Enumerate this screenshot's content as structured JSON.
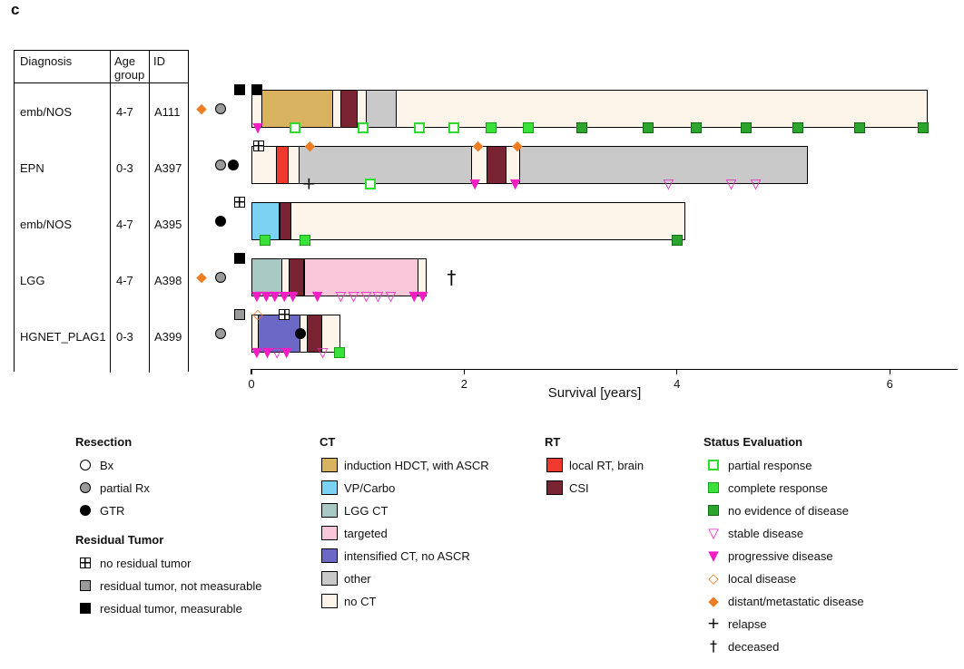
{
  "panel_label": "c",
  "table": {
    "headers": [
      "Diagnosis",
      "Age group",
      "ID"
    ]
  },
  "colors": {
    "segment": {
      "induction HDCT, with ASCR": "#d9b25f",
      "VP/Carbo": "#7bd2f2",
      "LGG CT": "#a7c8c3",
      "targeted": "#f9c7d9",
      "intensified CT, no ASCR": "#6c68c5",
      "other": "#c9c9c9",
      "no CT": "#fdf4ea",
      "local RT, brain": "#f0392e",
      "CSI": "#7a2433"
    },
    "status": {
      "partial_response_green": "#2ddd2d",
      "complete_response_green": "#3ae13a",
      "complete_response_border": "#17a017",
      "ned_green": "#2da42d",
      "ned_border": "#0f6b0f",
      "magenta": "#f21dc3",
      "orange": "#ee7d23",
      "gray": "#9a9a9a"
    }
  },
  "chart_data": {
    "type": "swimmer",
    "title": "",
    "xlabel": "Survival [years]",
    "xlim": [
      0,
      6.64
    ],
    "xticks": [
      0,
      2,
      4,
      6
    ],
    "grid": false,
    "legend_position": "bottom",
    "patients": [
      {
        "diagnosis": "emb/NOS",
        "age_group": "4-7",
        "id": "A111",
        "pre_markers": [
          {
            "type": "distant/metastatic disease",
            "col": "diamond"
          },
          {
            "type": "partial Rx",
            "col": "circle"
          },
          {
            "type": "residual tumor, measurable",
            "col": "square"
          }
        ],
        "bar_end": 6.36,
        "segments": [
          {
            "type": "no CT",
            "start": 0,
            "end": 0.1
          },
          {
            "type": "induction HDCT, with ASCR",
            "start": 0.1,
            "end": 0.77
          },
          {
            "type": "no CT",
            "start": 0.77,
            "end": 0.84
          },
          {
            "type": "CSI",
            "start": 0.84,
            "end": 1.0
          },
          {
            "type": "no CT",
            "start": 1.0,
            "end": 1.08
          },
          {
            "type": "other",
            "start": 1.08,
            "end": 1.37
          },
          {
            "type": "no CT",
            "start": 1.37,
            "end": 6.36
          }
        ],
        "events": [
          {
            "type": "residual tumor, measurable",
            "t": 0.05,
            "pos": "top"
          },
          {
            "type": "progressive disease",
            "t": 0.06,
            "pos": "bottom"
          },
          {
            "type": "partial response",
            "t": 0.41,
            "pos": "bottom"
          },
          {
            "type": "partial response",
            "t": 1.05,
            "pos": "bottom"
          },
          {
            "type": "partial response",
            "t": 1.58,
            "pos": "bottom"
          },
          {
            "type": "partial response",
            "t": 1.9,
            "pos": "bottom"
          },
          {
            "type": "complete response",
            "t": 2.25,
            "pos": "bottom"
          },
          {
            "type": "complete response",
            "t": 2.6,
            "pos": "bottom"
          },
          {
            "type": "no evidence of disease",
            "t": 3.11,
            "pos": "bottom"
          },
          {
            "type": "no evidence of disease",
            "t": 3.73,
            "pos": "bottom"
          },
          {
            "type": "no evidence of disease",
            "t": 4.18,
            "pos": "bottom"
          },
          {
            "type": "no evidence of disease",
            "t": 4.65,
            "pos": "bottom"
          },
          {
            "type": "no evidence of disease",
            "t": 5.14,
            "pos": "bottom"
          },
          {
            "type": "no evidence of disease",
            "t": 5.72,
            "pos": "bottom"
          },
          {
            "type": "no evidence of disease",
            "t": 6.31,
            "pos": "bottom"
          }
        ]
      },
      {
        "diagnosis": "EPN",
        "age_group": "0-3",
        "id": "A397",
        "pre_markers": [
          {
            "type": "partial Rx",
            "col": "circle"
          },
          {
            "type": "GTR",
            "col": "circle2"
          }
        ],
        "bar_end": 5.23,
        "segments": [
          {
            "type": "no CT",
            "start": 0,
            "end": 0.23
          },
          {
            "type": "local RT, brain",
            "start": 0.23,
            "end": 0.35
          },
          {
            "type": "no CT",
            "start": 0.35,
            "end": 0.45
          },
          {
            "type": "other",
            "start": 0.45,
            "end": 2.08
          },
          {
            "type": "no CT",
            "start": 2.08,
            "end": 2.21
          },
          {
            "type": "CSI",
            "start": 2.21,
            "end": 2.4
          },
          {
            "type": "no CT",
            "start": 2.4,
            "end": 2.52
          },
          {
            "type": "other",
            "start": 2.52,
            "end": 5.23
          }
        ],
        "events": [
          {
            "type": "no residual tumor",
            "t": 0.07,
            "pos": "top"
          },
          {
            "type": "relapse",
            "t": 0.54,
            "pos": "bottom"
          },
          {
            "type": "distant/metastatic disease",
            "t": 0.55,
            "pos": "top"
          },
          {
            "type": "partial response",
            "t": 1.12,
            "pos": "bottom"
          },
          {
            "type": "distant/metastatic disease",
            "t": 2.13,
            "pos": "top"
          },
          {
            "type": "progressive disease",
            "t": 2.1,
            "pos": "bottom"
          },
          {
            "type": "distant/metastatic disease",
            "t": 2.5,
            "pos": "top"
          },
          {
            "type": "progressive disease",
            "t": 2.48,
            "pos": "bottom"
          },
          {
            "type": "stable disease",
            "t": 3.92,
            "pos": "bottom"
          },
          {
            "type": "stable disease",
            "t": 4.51,
            "pos": "bottom"
          },
          {
            "type": "stable disease",
            "t": 4.74,
            "pos": "bottom"
          }
        ]
      },
      {
        "diagnosis": "emb/NOS",
        "age_group": "4-7",
        "id": "A395",
        "pre_markers": [
          {
            "type": "GTR",
            "col": "circle"
          },
          {
            "type": "no residual tumor",
            "col": "square"
          }
        ],
        "bar_end": 4.08,
        "segments": [
          {
            "type": "VP/Carbo",
            "start": 0,
            "end": 0.27
          },
          {
            "type": "CSI",
            "start": 0.27,
            "end": 0.38
          },
          {
            "type": "no CT",
            "start": 0.38,
            "end": 4.08
          }
        ],
        "events": [
          {
            "type": "complete response",
            "t": 0.13,
            "pos": "bottom"
          },
          {
            "type": "complete response",
            "t": 0.5,
            "pos": "bottom"
          },
          {
            "type": "no evidence of disease",
            "t": 4.0,
            "pos": "bottom"
          }
        ]
      },
      {
        "diagnosis": "LGG",
        "age_group": "4-7",
        "id": "A398",
        "pre_markers": [
          {
            "type": "distant/metastatic disease",
            "col": "diamond"
          },
          {
            "type": "partial Rx",
            "col": "circle"
          },
          {
            "type": "residual tumor, measurable",
            "col": "square"
          }
        ],
        "bar_end": 1.65,
        "segments": [
          {
            "type": "LGG CT",
            "start": 0,
            "end": 0.29
          },
          {
            "type": "no CT",
            "start": 0.29,
            "end": 0.35
          },
          {
            "type": "CSI",
            "start": 0.35,
            "end": 0.5
          },
          {
            "type": "targeted",
            "start": 0.5,
            "end": 1.57
          },
          {
            "type": "no CT",
            "start": 1.57,
            "end": 1.65
          }
        ],
        "events": [
          {
            "type": "progressive disease",
            "t": 0.05,
            "pos": "bottom"
          },
          {
            "type": "progressive disease",
            "t": 0.14,
            "pos": "bottom"
          },
          {
            "type": "progressive disease",
            "t": 0.22,
            "pos": "bottom"
          },
          {
            "type": "progressive disease",
            "t": 0.31,
            "pos": "bottom"
          },
          {
            "type": "progressive disease",
            "t": 0.39,
            "pos": "bottom"
          },
          {
            "type": "progressive disease",
            "t": 0.62,
            "pos": "bottom"
          },
          {
            "type": "stable disease",
            "t": 0.84,
            "pos": "bottom"
          },
          {
            "type": "stable disease",
            "t": 0.96,
            "pos": "bottom"
          },
          {
            "type": "stable disease",
            "t": 1.08,
            "pos": "bottom"
          },
          {
            "type": "stable disease",
            "t": 1.19,
            "pos": "bottom"
          },
          {
            "type": "stable disease",
            "t": 1.31,
            "pos": "bottom"
          },
          {
            "type": "progressive disease",
            "t": 1.53,
            "pos": "bottom"
          },
          {
            "type": "progressive disease",
            "t": 1.61,
            "pos": "bottom"
          },
          {
            "type": "deceased",
            "t": 1.88,
            "pos": "mid"
          }
        ]
      },
      {
        "diagnosis": "HGNET_PLAG1",
        "age_group": "0-3",
        "id": "A399",
        "pre_markers": [
          {
            "type": "partial Rx",
            "col": "circle"
          },
          {
            "type": "residual tumor, not measurable",
            "col": "square"
          }
        ],
        "bar_end": 0.84,
        "segments": [
          {
            "type": "no CT",
            "start": 0,
            "end": 0.06
          },
          {
            "type": "intensified CT, no ASCR",
            "start": 0.06,
            "end": 0.46
          },
          {
            "type": "no CT",
            "start": 0.46,
            "end": 0.52
          },
          {
            "type": "CSI",
            "start": 0.52,
            "end": 0.67
          },
          {
            "type": "no CT",
            "start": 0.67,
            "end": 0.84
          }
        ],
        "events": [
          {
            "type": "local disease",
            "t": 0.06,
            "pos": "top"
          },
          {
            "type": "no residual tumor",
            "t": 0.31,
            "pos": "top"
          },
          {
            "type": "GTR",
            "t": 0.46,
            "pos": "mid"
          },
          {
            "type": "progressive disease",
            "t": 0.05,
            "pos": "bottom"
          },
          {
            "type": "progressive disease",
            "t": 0.15,
            "pos": "bottom"
          },
          {
            "type": "stable disease",
            "t": 0.24,
            "pos": "bottom"
          },
          {
            "type": "progressive disease",
            "t": 0.33,
            "pos": "bottom"
          },
          {
            "type": "stable disease",
            "t": 0.67,
            "pos": "bottom"
          },
          {
            "type": "complete response",
            "t": 0.83,
            "pos": "bottom"
          }
        ]
      }
    ]
  },
  "legend": {
    "resection": {
      "title": "Resection",
      "items": [
        {
          "marker": "Bx",
          "label": "Bx"
        },
        {
          "marker": "partial Rx",
          "label": "partial Rx"
        },
        {
          "marker": "GTR",
          "label": "GTR"
        }
      ]
    },
    "residual_tumor": {
      "title": "Residual Tumor",
      "items": [
        {
          "marker": "no residual tumor",
          "label": "no residual tumor"
        },
        {
          "marker": "residual tumor, not measurable",
          "label": "residual tumor, not measurable"
        },
        {
          "marker": "residual tumor, measurable",
          "label": "residual tumor, measurable"
        }
      ]
    },
    "ct": {
      "title": "CT",
      "items": [
        {
          "swatch": "induction HDCT, with ASCR",
          "label": "induction HDCT, with ASCR"
        },
        {
          "swatch": "VP/Carbo",
          "label": "VP/Carbo"
        },
        {
          "swatch": "LGG CT",
          "label": "LGG CT"
        },
        {
          "swatch": "targeted",
          "label": "targeted"
        },
        {
          "swatch": "intensified CT, no ASCR",
          "label": "intensified CT, no ASCR"
        },
        {
          "swatch": "other",
          "label": "other"
        },
        {
          "swatch": "no CT",
          "label": "no CT"
        }
      ]
    },
    "rt": {
      "title": "RT",
      "items": [
        {
          "swatch": "local RT, brain",
          "label": "local RT, brain"
        },
        {
          "swatch": "CSI",
          "label": "CSI"
        }
      ]
    },
    "status": {
      "title": "Status Evaluation",
      "items": [
        {
          "marker": "partial response",
          "label": "partial response"
        },
        {
          "marker": "complete response",
          "label": "complete response"
        },
        {
          "marker": "no evidence of disease",
          "label": "no evidence of disease"
        },
        {
          "marker": "stable disease",
          "label": "stable disease"
        },
        {
          "marker": "progressive disease",
          "label": "progressive disease"
        },
        {
          "marker": "local disease",
          "label": "local disease"
        },
        {
          "marker": "distant/metastatic disease",
          "label": "distant/metastatic disease"
        },
        {
          "marker": "relapse",
          "label": "relapse"
        },
        {
          "marker": "deceased",
          "label": "deceased"
        }
      ]
    }
  }
}
